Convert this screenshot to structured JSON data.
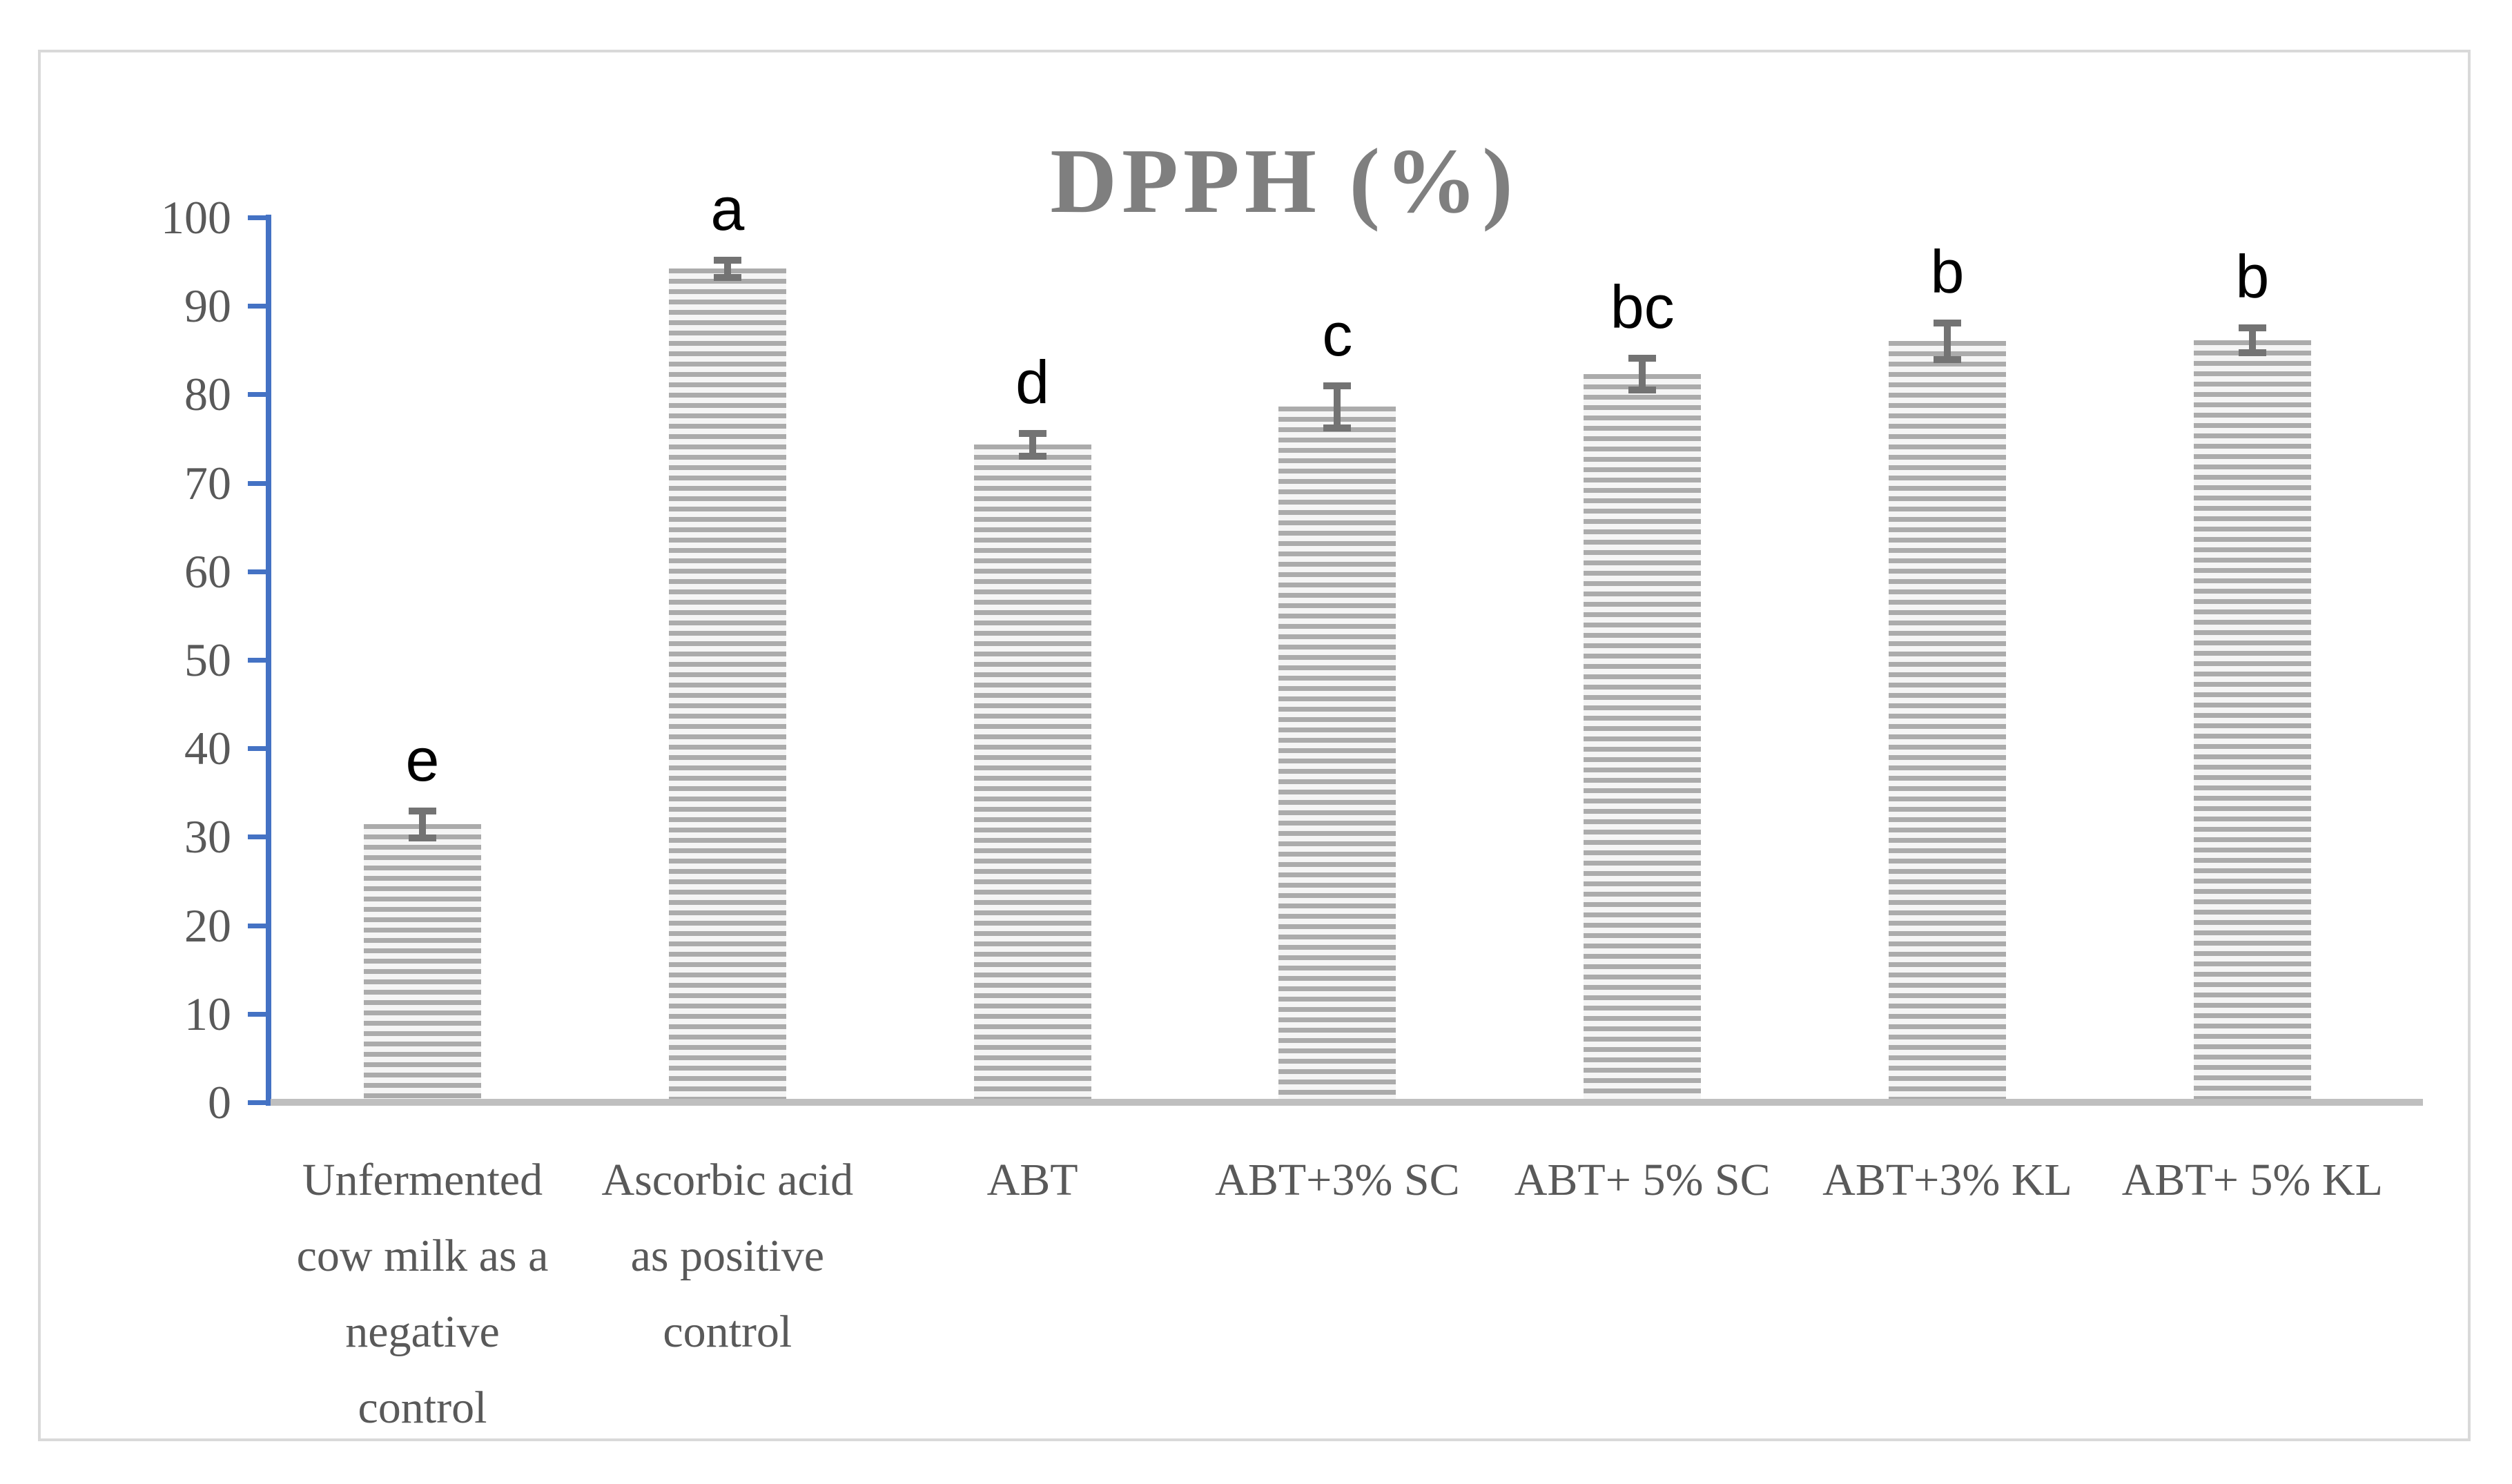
{
  "chart": {
    "title": "DPPH (%)"
  },
  "chart_data": {
    "type": "bar",
    "title": "DPPH (%)",
    "xlabel": "",
    "ylabel": "",
    "ylim": [
      0,
      100
    ],
    "ytick_step": 10,
    "grid": false,
    "legend": null,
    "categories": [
      "Unfermented\ncow milk as a\nnegative\ncontrol",
      "Ascorbic acid\nas positive\ncontrol",
      "ABT",
      "ABT+3% SC",
      "ABT+ 5% SC",
      "ABT+3% KL",
      "ABT+ 5% KL"
    ],
    "values": [
      31.4,
      94.2,
      74.3,
      78.6,
      82.3,
      86.0,
      86.1
    ],
    "error_bars": [
      1.5,
      1.0,
      1.3,
      2.4,
      1.8,
      2.1,
      1.4
    ],
    "significance_letters": [
      "e",
      "a",
      "d",
      "c",
      "bc",
      "b",
      "b"
    ],
    "bar_pattern": "horizontal-stripes"
  },
  "colors": {
    "axis_blue": "#4472C4",
    "tick_text": "#595959",
    "title_gray": "#7F7F7F",
    "baseline_gray": "#BFBFBF",
    "border_gray": "#D9D9D9",
    "error_bar_gray": "#737373",
    "stripe_dark": "#ABABAB",
    "stripe_light": "#F5F5F5",
    "letter_black": "#000000"
  }
}
